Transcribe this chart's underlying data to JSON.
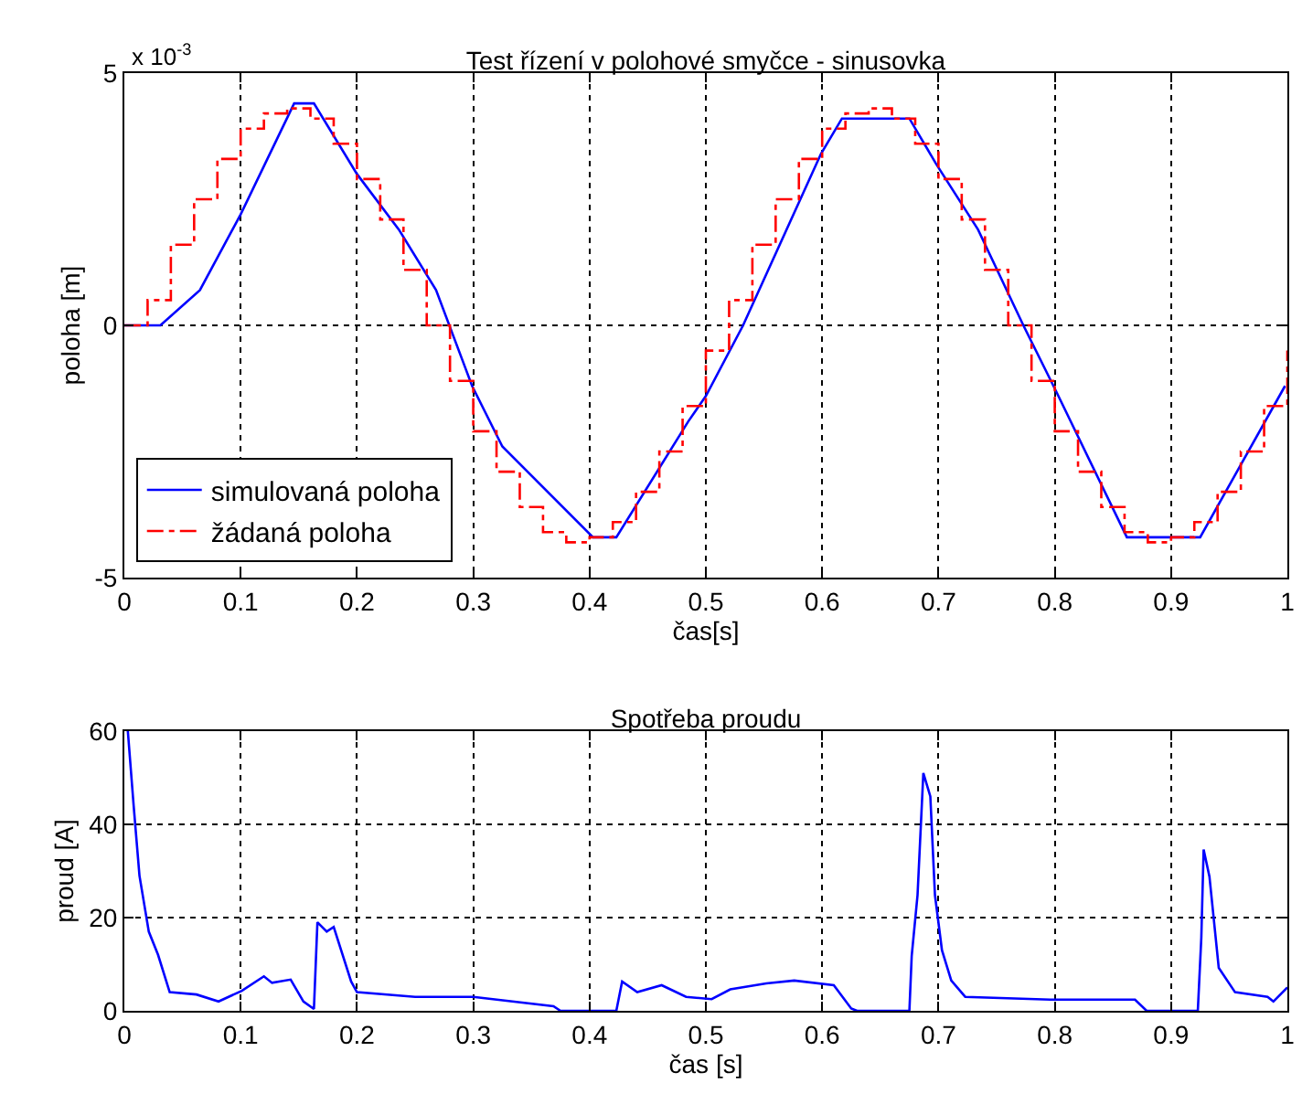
{
  "chart_data": [
    {
      "type": "line",
      "title": "Test řízení v polohové smyčce - sinusovka",
      "xlabel": "čas[s]",
      "ylabel": "poloha [m]",
      "annotations": [
        "x 10$^{-3}$"
      ],
      "xlim": [
        0,
        1
      ],
      "xticks": [
        0,
        0.1,
        0.2,
        0.3,
        0.4,
        0.5,
        0.6,
        0.7,
        0.8,
        0.9,
        1
      ],
      "ylim": [
        -5,
        5
      ],
      "yticks": [
        -5,
        0,
        5
      ],
      "grid": true,
      "legend": "bottom left",
      "series": [
        {
          "name": "simulovaná poloha",
          "color": "#0000ff",
          "line_style": "solid",
          "x": [
            0,
            0.031,
            0.065,
            0.1,
            0.146,
            0.163,
            0.2,
            0.236,
            0.268,
            0.299,
            0.325,
            0.403,
            0.423,
            0.485,
            0.5,
            0.532,
            0.599,
            0.617,
            0.675,
            0.698,
            0.734,
            0.773,
            0.801,
            0.862,
            0.925,
            0.998
          ],
          "values": [
            0,
            0,
            0.7,
            2.2,
            4.4,
            4.4,
            3,
            1.9,
            0.7,
            -1.2,
            -2.4,
            -4.2,
            -4.2,
            -1.9,
            -1.4,
            0,
            3.4,
            4.1,
            4.1,
            3.2,
            1.9,
            0,
            -1.3,
            -4.2,
            -4.2,
            -1.2
          ]
        },
        {
          "name": "žádaná poloha",
          "color": "#ff0000",
          "type": "step",
          "line_style": "dashed",
          "x": [
            0,
            0.02,
            0.04,
            0.06,
            0.08,
            0.1,
            0.12,
            0.14,
            0.16,
            0.18,
            0.2,
            0.22,
            0.24,
            0.26,
            0.28,
            0.3,
            0.32,
            0.34,
            0.36,
            0.38,
            0.4,
            0.42,
            0.44,
            0.46,
            0.48,
            0.5,
            0.52,
            0.54,
            0.56,
            0.58,
            0.6,
            0.62,
            0.64,
            0.66,
            0.68,
            0.7,
            0.72,
            0.74,
            0.76,
            0.78,
            0.8,
            0.82,
            0.84,
            0.86,
            0.88,
            0.9,
            0.92,
            0.94,
            0.96,
            0.98,
            1
          ],
          "values": [
            0,
            0.5,
            1.6,
            2.5,
            3.3,
            3.9,
            4.2,
            4.3,
            4.1,
            3.6,
            2.9,
            2.1,
            1.1,
            0,
            -1.1,
            -2.1,
            -2.9,
            -3.6,
            -4.1,
            -4.3,
            -4.2,
            -3.9,
            -3.3,
            -2.5,
            -1.6,
            -0.5,
            0.5,
            1.6,
            2.5,
            3.3,
            3.9,
            4.2,
            4.3,
            4.1,
            3.6,
            2.9,
            2.1,
            1.1,
            0,
            -1.1,
            -2.1,
            -2.9,
            -3.6,
            -4.1,
            -4.3,
            -4.2,
            -3.9,
            -3.3,
            -2.5,
            -1.6,
            -0.5
          ]
        }
      ]
    },
    {
      "type": "line",
      "title": "Spotřeba proudu",
      "xlabel": "čas [s]",
      "ylabel": "proud [A]",
      "xlim": [
        0,
        1
      ],
      "xticks": [
        0,
        0.1,
        0.2,
        0.3,
        0.4,
        0.5,
        0.6,
        0.7,
        0.8,
        0.9,
        1
      ],
      "ylim": [
        0,
        60
      ],
      "yticks": [
        0,
        20,
        40,
        60
      ],
      "grid": true,
      "series": [
        {
          "color": "#0000ff",
          "x": [
            0.003,
            0.008,
            0.013,
            0.021,
            0.029,
            0.039,
            0.062,
            0.081,
            0.101,
            0.12,
            0.127,
            0.143,
            0.154,
            0.163,
            0.166,
            0.174,
            0.18,
            0.195,
            0.2,
            0.25,
            0.3,
            0.369,
            0.375,
            0.423,
            0.428,
            0.441,
            0.462,
            0.483,
            0.505,
            0.521,
            0.552,
            0.576,
            0.61,
            0.625,
            0.63,
            0.675,
            0.677,
            0.682,
            0.687,
            0.693,
            0.697,
            0.703,
            0.711,
            0.723,
            0.796,
            0.869,
            0.879,
            0.923,
            0.926,
            0.928,
            0.933,
            0.941,
            0.955,
            0.983,
            0.988,
            1
          ],
          "values": [
            60,
            44,
            29,
            17,
            12,
            4,
            3.5,
            2,
            4.3,
            7.4,
            6,
            6.7,
            2,
            0.4,
            19,
            17,
            18,
            6.3,
            4,
            3,
            3,
            1,
            0,
            0,
            6.3,
            4,
            5.5,
            3,
            2.5,
            4.6,
            5.9,
            6.5,
            5.5,
            0.5,
            0,
            0,
            11.8,
            24.8,
            51,
            46,
            24.8,
            13,
            6.5,
            3,
            2.4,
            2.4,
            0,
            0,
            15.7,
            34.6,
            28.8,
            9.2,
            4,
            3,
            2,
            5
          ]
        }
      ]
    }
  ]
}
